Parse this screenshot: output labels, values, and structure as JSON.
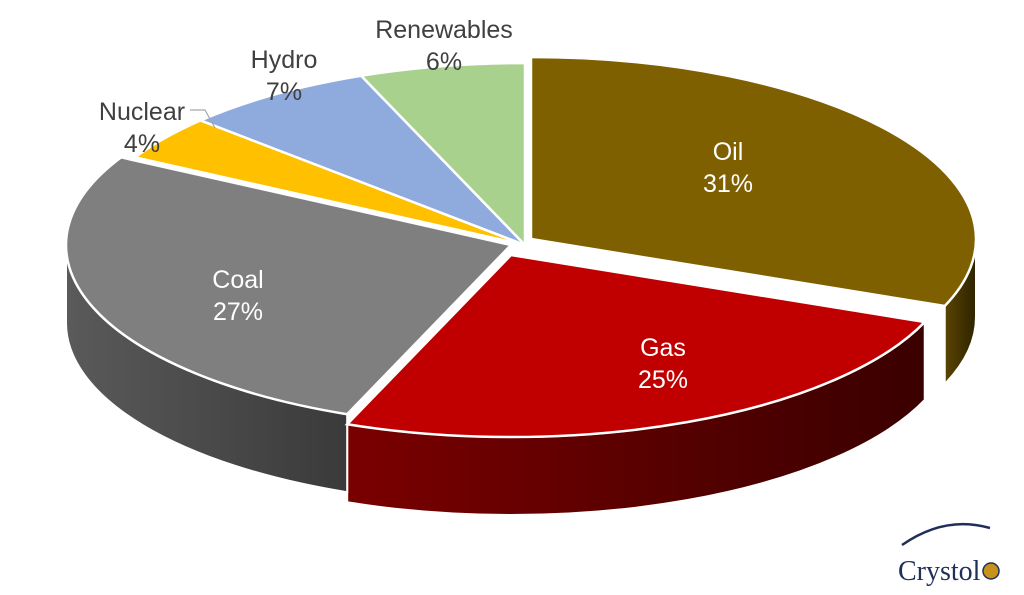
{
  "chart_data": {
    "type": "pie",
    "title": "",
    "categories": [
      "Oil",
      "Gas",
      "Coal",
      "Nuclear",
      "Hydro",
      "Renewables"
    ],
    "values": [
      31,
      25,
      27,
      4,
      7,
      6
    ],
    "value_labels": [
      "31%",
      "25%",
      "27%",
      "4%",
      "7%",
      "6%"
    ],
    "colors": [
      "#7f6000",
      "#c00000",
      "#7f7f7f",
      "#ffc000",
      "#8faadc",
      "#a9d18e"
    ],
    "style": "3d-exploded",
    "legend": "none"
  },
  "logo": {
    "text": "Crystol",
    "accent_color": "#1f2f5a"
  }
}
